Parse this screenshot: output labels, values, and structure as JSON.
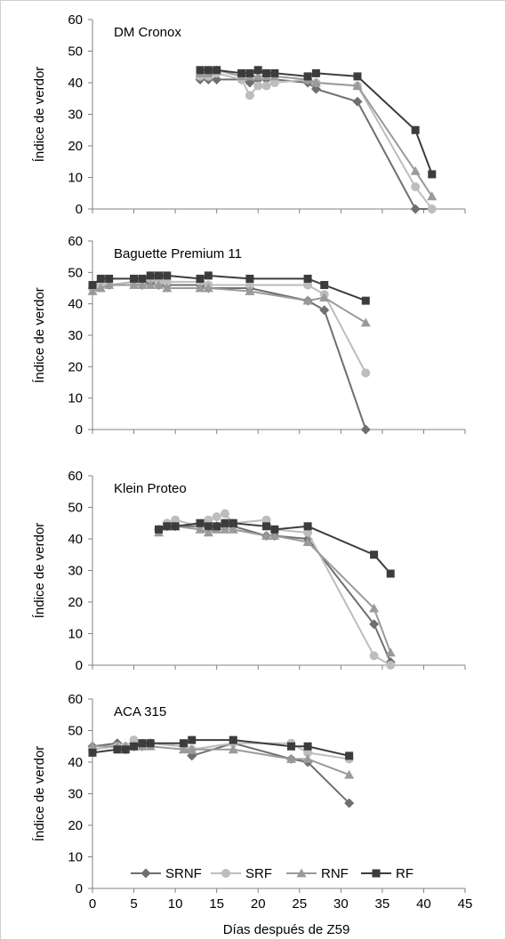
{
  "chart_data": {
    "type": "line",
    "xlabel": "Días después de Z59",
    "ylabel": "Índice de verdor",
    "xlim": [
      0,
      45
    ],
    "xticks": [
      0,
      5,
      10,
      15,
      20,
      25,
      30,
      35,
      40,
      45
    ],
    "ylim": [
      0,
      60
    ],
    "yticks": [
      0,
      10,
      20,
      30,
      40,
      50,
      60
    ],
    "grid": false,
    "legend_position": "bottom-inside",
    "legend": [
      "SRNF",
      "SRF",
      "RNF",
      "RF"
    ],
    "series_styles": [
      {
        "name": "SRNF",
        "color": "#6f6f6f",
        "marker": "diamond"
      },
      {
        "name": "SRF",
        "color": "#bdbdbd",
        "marker": "circle"
      },
      {
        "name": "RNF",
        "color": "#9a9a9a",
        "marker": "triangle"
      },
      {
        "name": "RF",
        "color": "#3c3c3c",
        "marker": "square"
      }
    ],
    "panels": [
      {
        "title": "DM Cronox",
        "series": [
          {
            "name": "SRNF",
            "points": [
              [
                13,
                41
              ],
              [
                14,
                41
              ],
              [
                15,
                41
              ],
              [
                18,
                41
              ],
              [
                19,
                40
              ],
              [
                20,
                41
              ],
              [
                21,
                41
              ],
              [
                22,
                41
              ],
              [
                26,
                40
              ],
              [
                27,
                38
              ],
              [
                32,
                34
              ],
              [
                39,
                0
              ],
              [
                41,
                0
              ]
            ]
          },
          {
            "name": "SRF",
            "points": [
              [
                13,
                42
              ],
              [
                14,
                42
              ],
              [
                15,
                43
              ],
              [
                18,
                41
              ],
              [
                19,
                36
              ],
              [
                20,
                39
              ],
              [
                21,
                39
              ],
              [
                22,
                40
              ],
              [
                26,
                41
              ],
              [
                27,
                40
              ],
              [
                32,
                39
              ],
              [
                39,
                7
              ],
              [
                41,
                0
              ]
            ]
          },
          {
            "name": "RNF",
            "points": [
              [
                13,
                43
              ],
              [
                14,
                43
              ],
              [
                15,
                44
              ],
              [
                18,
                42
              ],
              [
                19,
                42
              ],
              [
                20,
                42
              ],
              [
                21,
                42
              ],
              [
                22,
                42
              ],
              [
                26,
                41
              ],
              [
                27,
                40
              ],
              [
                32,
                39
              ],
              [
                39,
                12
              ],
              [
                41,
                4
              ]
            ]
          },
          {
            "name": "RF",
            "points": [
              [
                13,
                44
              ],
              [
                14,
                44
              ],
              [
                15,
                44
              ],
              [
                18,
                43
              ],
              [
                19,
                43
              ],
              [
                20,
                44
              ],
              [
                21,
                43
              ],
              [
                22,
                43
              ],
              [
                26,
                42
              ],
              [
                27,
                43
              ],
              [
                32,
                42
              ],
              [
                39,
                25
              ],
              [
                41,
                11
              ]
            ]
          }
        ]
      },
      {
        "title": "Baguette Premium 11",
        "series": [
          {
            "name": "SRNF",
            "points": [
              [
                0,
                45
              ],
              [
                1,
                46
              ],
              [
                2,
                46
              ],
              [
                5,
                47
              ],
              [
                6,
                46
              ],
              [
                7,
                47
              ],
              [
                8,
                46
              ],
              [
                9,
                46
              ],
              [
                13,
                46
              ],
              [
                14,
                45
              ],
              [
                19,
                45
              ],
              [
                26,
                41
              ],
              [
                28,
                38
              ],
              [
                33,
                0
              ]
            ]
          },
          {
            "name": "SRF",
            "points": [
              [
                0,
                45
              ],
              [
                1,
                46
              ],
              [
                2,
                46
              ],
              [
                5,
                47
              ],
              [
                6,
                47
              ],
              [
                7,
                48
              ],
              [
                8,
                47
              ],
              [
                9,
                47
              ],
              [
                13,
                47
              ],
              [
                14,
                46
              ],
              [
                19,
                46
              ],
              [
                26,
                46
              ],
              [
                28,
                43
              ],
              [
                33,
                18
              ]
            ]
          },
          {
            "name": "RNF",
            "points": [
              [
                0,
                44
              ],
              [
                1,
                45
              ],
              [
                2,
                46
              ],
              [
                5,
                46
              ],
              [
                6,
                46
              ],
              [
                7,
                46
              ],
              [
                8,
                46
              ],
              [
                9,
                45
              ],
              [
                13,
                45
              ],
              [
                14,
                45
              ],
              [
                19,
                44
              ],
              [
                26,
                41
              ],
              [
                28,
                42
              ],
              [
                33,
                34
              ]
            ]
          },
          {
            "name": "RF",
            "points": [
              [
                0,
                46
              ],
              [
                1,
                48
              ],
              [
                2,
                48
              ],
              [
                5,
                48
              ],
              [
                6,
                48
              ],
              [
                7,
                49
              ],
              [
                8,
                49
              ],
              [
                9,
                49
              ],
              [
                13,
                48
              ],
              [
                14,
                49
              ],
              [
                19,
                48
              ],
              [
                26,
                48
              ],
              [
                28,
                46
              ],
              [
                33,
                41
              ]
            ]
          }
        ]
      },
      {
        "title": "Klein Proteo",
        "series": [
          {
            "name": "SRNF",
            "points": [
              [
                8,
                43
              ],
              [
                9,
                44
              ],
              [
                10,
                44
              ],
              [
                13,
                44
              ],
              [
                14,
                44
              ],
              [
                15,
                44
              ],
              [
                16,
                44
              ],
              [
                17,
                44
              ],
              [
                21,
                41
              ],
              [
                22,
                41
              ],
              [
                26,
                40
              ],
              [
                34,
                13
              ],
              [
                36,
                1
              ]
            ]
          },
          {
            "name": "SRF",
            "points": [
              [
                8,
                43
              ],
              [
                9,
                45
              ],
              [
                10,
                46
              ],
              [
                13,
                44
              ],
              [
                14,
                46
              ],
              [
                15,
                47
              ],
              [
                16,
                48
              ],
              [
                17,
                45
              ],
              [
                21,
                46
              ],
              [
                22,
                43
              ],
              [
                26,
                42
              ],
              [
                34,
                3
              ],
              [
                36,
                0
              ]
            ]
          },
          {
            "name": "RNF",
            "points": [
              [
                8,
                42
              ],
              [
                9,
                44
              ],
              [
                10,
                44
              ],
              [
                13,
                43
              ],
              [
                14,
                42
              ],
              [
                15,
                43
              ],
              [
                16,
                43
              ],
              [
                17,
                43
              ],
              [
                21,
                41
              ],
              [
                22,
                41
              ],
              [
                26,
                39
              ],
              [
                34,
                18
              ],
              [
                36,
                4
              ]
            ]
          },
          {
            "name": "RF",
            "points": [
              [
                8,
                43
              ],
              [
                9,
                44
              ],
              [
                10,
                44
              ],
              [
                13,
                45
              ],
              [
                14,
                44
              ],
              [
                15,
                44
              ],
              [
                16,
                45
              ],
              [
                17,
                45
              ],
              [
                21,
                44
              ],
              [
                22,
                43
              ],
              [
                26,
                44
              ],
              [
                34,
                35
              ],
              [
                36,
                29
              ]
            ]
          }
        ]
      },
      {
        "title": "ACA 315",
        "series": [
          {
            "name": "SRNF",
            "points": [
              [
                0,
                45
              ],
              [
                3,
                46
              ],
              [
                4,
                44
              ],
              [
                5,
                45
              ],
              [
                6,
                45
              ],
              [
                7,
                46
              ],
              [
                11,
                45
              ],
              [
                12,
                42
              ],
              [
                17,
                46
              ],
              [
                24,
                41
              ],
              [
                26,
                40
              ],
              [
                31,
                27
              ]
            ]
          },
          {
            "name": "SRF",
            "points": [
              [
                0,
                44
              ],
              [
                3,
                45
              ],
              [
                4,
                45
              ],
              [
                5,
                47
              ],
              [
                6,
                46
              ],
              [
                7,
                46
              ],
              [
                11,
                45
              ],
              [
                12,
                44
              ],
              [
                17,
                46
              ],
              [
                24,
                46
              ],
              [
                26,
                43
              ],
              [
                31,
                41
              ]
            ]
          },
          {
            "name": "RNF",
            "points": [
              [
                0,
                45
              ],
              [
                3,
                45
              ],
              [
                4,
                45
              ],
              [
                5,
                45
              ],
              [
                6,
                45
              ],
              [
                7,
                45
              ],
              [
                11,
                44
              ],
              [
                12,
                44
              ],
              [
                17,
                44
              ],
              [
                24,
                41
              ],
              [
                26,
                41
              ],
              [
                31,
                36
              ]
            ]
          },
          {
            "name": "RF",
            "points": [
              [
                0,
                43
              ],
              [
                3,
                44
              ],
              [
                4,
                44
              ],
              [
                5,
                45
              ],
              [
                6,
                46
              ],
              [
                7,
                46
              ],
              [
                11,
                46
              ],
              [
                12,
                47
              ],
              [
                17,
                47
              ],
              [
                24,
                45
              ],
              [
                26,
                45
              ],
              [
                31,
                42
              ]
            ]
          }
        ]
      }
    ]
  }
}
